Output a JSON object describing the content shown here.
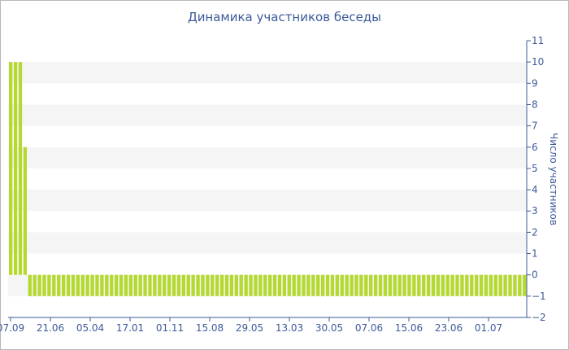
{
  "chart_data": {
    "type": "bar",
    "title": "Динамика участников беседы",
    "ylabel": "Число участников",
    "xlabel": "",
    "ylim": [
      -2,
      11
    ],
    "yticks": [
      -2,
      -1,
      0,
      1,
      2,
      3,
      4,
      5,
      6,
      7,
      8,
      9,
      10,
      11
    ],
    "x_ticks": [
      "07.09",
      "21.06",
      "05.04",
      "17.01",
      "01.11",
      "15.08",
      "29.05",
      "13.03",
      "30.05",
      "07.06",
      "15.06",
      "23.06",
      "01.07"
    ],
    "bar_color": "#b5d930",
    "grid": "alternating horizontal bands",
    "values": [
      10,
      10,
      10,
      6,
      -1,
      -1,
      -1,
      -1,
      -1,
      -1,
      -1,
      -1,
      -1,
      -1,
      -1,
      -1,
      -1,
      -1,
      -1,
      -1,
      -1,
      -1,
      -1,
      -1,
      -1,
      -1,
      -1,
      -1,
      -1,
      -1,
      -1,
      -1,
      -1,
      -1,
      -1,
      -1,
      -1,
      -1,
      -1,
      -1,
      -1,
      -1,
      -1,
      -1,
      -1,
      -1,
      -1,
      -1,
      -1,
      -1,
      -1,
      -1,
      -1,
      -1,
      -1,
      -1,
      -1,
      -1,
      -1,
      -1,
      -1,
      -1,
      -1,
      -1,
      -1,
      -1,
      -1,
      -1,
      -1,
      -1,
      -1,
      -1,
      -1,
      -1,
      -1,
      -1,
      -1,
      -1,
      -1,
      -1,
      -1,
      -1,
      -1,
      -1,
      -1,
      -1,
      -1,
      -1,
      -1,
      -1,
      -1,
      -1,
      -1,
      -1,
      -1,
      -1,
      -1,
      -1,
      -1,
      -1,
      -1,
      -1,
      -1,
      -1,
      -1,
      -1,
      -1,
      -1
    ]
  }
}
